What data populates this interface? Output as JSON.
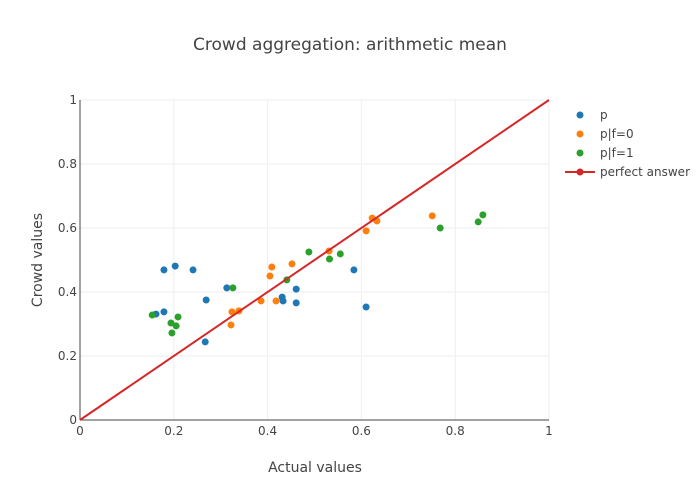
{
  "chart_data": {
    "type": "scatter",
    "title": "Crowd aggregation: arithmetic mean",
    "xlabel": "Actual values",
    "ylabel": "Crowd values",
    "xlim": [
      0,
      1
    ],
    "ylim": [
      0,
      1
    ],
    "xticks": [
      "0",
      "0.2",
      "0.4",
      "0.6",
      "0.8",
      "1"
    ],
    "yticks": [
      "0",
      "0.2",
      "0.4",
      "0.6",
      "0.8",
      "1"
    ],
    "grid": true,
    "legend_position": "top-right",
    "series": [
      {
        "name": "p",
        "color": "#1f77b4",
        "points": [
          [
            0.179,
            0.469
          ],
          [
            0.203,
            0.481
          ],
          [
            0.241,
            0.469
          ],
          [
            0.162,
            0.331
          ],
          [
            0.179,
            0.338
          ],
          [
            0.269,
            0.375
          ],
          [
            0.267,
            0.244
          ],
          [
            0.313,
            0.413
          ],
          [
            0.431,
            0.384
          ],
          [
            0.433,
            0.372
          ],
          [
            0.461,
            0.409
          ],
          [
            0.461,
            0.366
          ],
          [
            0.584,
            0.469
          ],
          [
            0.61,
            0.353
          ]
        ]
      },
      {
        "name": "p|f=0",
        "color": "#ff7f0e",
        "points": [
          [
            0.324,
            0.338
          ],
          [
            0.339,
            0.341
          ],
          [
            0.322,
            0.297
          ],
          [
            0.386,
            0.372
          ],
          [
            0.418,
            0.372
          ],
          [
            0.405,
            0.45
          ],
          [
            0.409,
            0.478
          ],
          [
            0.452,
            0.488
          ],
          [
            0.531,
            0.528
          ],
          [
            0.61,
            0.591
          ],
          [
            0.623,
            0.631
          ],
          [
            0.633,
            0.622
          ],
          [
            0.751,
            0.638
          ]
        ]
      },
      {
        "name": "p|f=1",
        "color": "#2ca02c",
        "points": [
          [
            0.154,
            0.328
          ],
          [
            0.194,
            0.303
          ],
          [
            0.205,
            0.294
          ],
          [
            0.209,
            0.322
          ],
          [
            0.196,
            0.272
          ],
          [
            0.326,
            0.413
          ],
          [
            0.441,
            0.438
          ],
          [
            0.488,
            0.525
          ],
          [
            0.532,
            0.503
          ],
          [
            0.555,
            0.519
          ],
          [
            0.768,
            0.6
          ],
          [
            0.849,
            0.619
          ],
          [
            0.859,
            0.641
          ]
        ]
      },
      {
        "name": "perfect answer",
        "color": "#d62728",
        "type": "line",
        "points": [
          [
            0,
            0
          ],
          [
            1,
            1
          ]
        ]
      }
    ]
  }
}
